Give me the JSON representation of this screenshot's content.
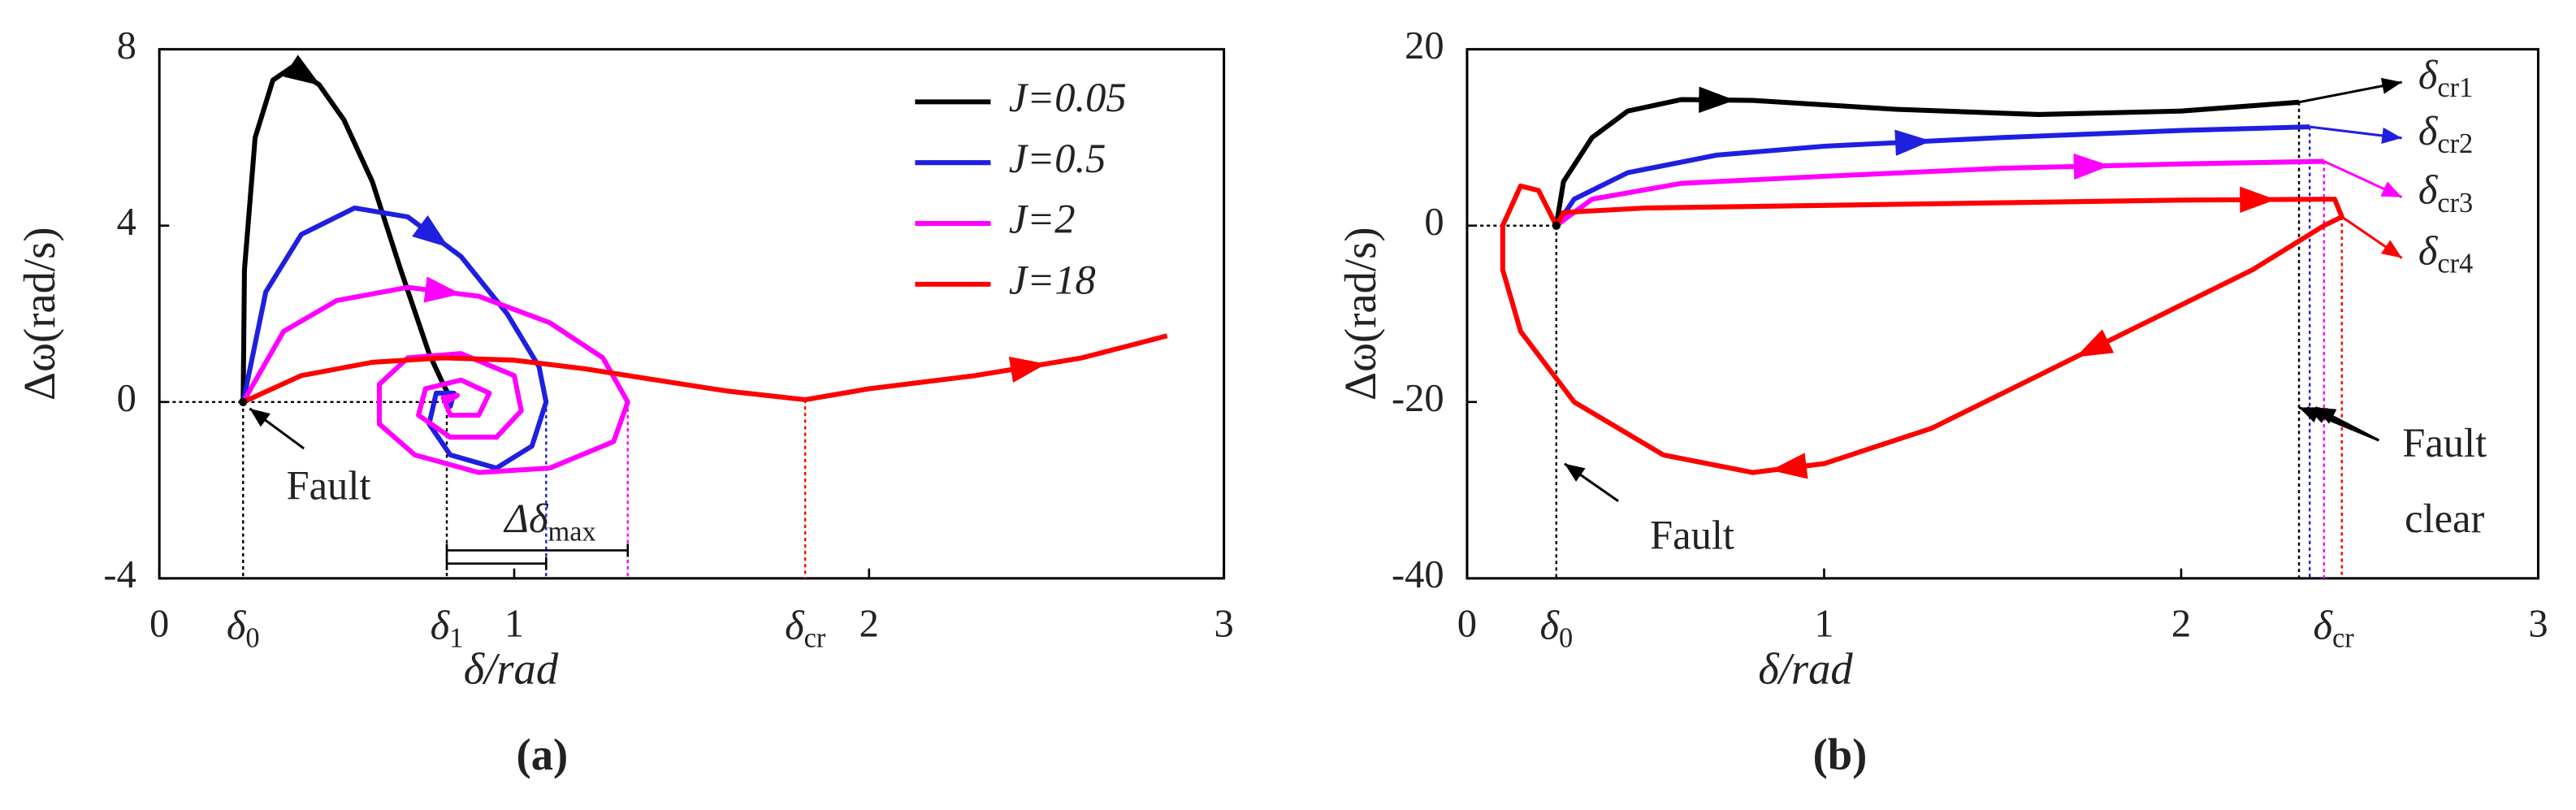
{
  "chart_data": [
    {
      "type": "line",
      "caption": "(a)",
      "x_label": "δ/rad",
      "y_label": "Δω(rad/s)",
      "xlim": [
        0,
        3
      ],
      "xticks": [
        0,
        1,
        2,
        3
      ],
      "ylim": [
        -4,
        8
      ],
      "yticks": [
        -4,
        0,
        4,
        8
      ],
      "legend": "upper right",
      "series": [
        {
          "name": "J=0.05",
          "color": "#000000",
          "x": [
            0.236,
            0.24,
            0.27,
            0.32,
            0.375,
            0.45,
            0.52,
            0.6,
            0.68,
            0.76,
            0.8,
            0.82,
            0.81
          ],
          "values": [
            0,
            3,
            6,
            7.3,
            7.6,
            7.2,
            6.4,
            5,
            3,
            1.1,
            0.4,
            0.1,
            0
          ]
        },
        {
          "name": "J=0.5",
          "color": "#1f1fe0",
          "x": [
            0.236,
            0.3,
            0.4,
            0.55,
            0.7,
            0.85,
            0.98,
            1.07,
            1.09,
            1.05,
            0.95,
            0.82,
            0.76,
            0.78,
            0.83,
            0.82,
            0.81
          ],
          "values": [
            0,
            2.5,
            3.8,
            4.4,
            4.2,
            3.3,
            2,
            0.8,
            0,
            -1,
            -1.5,
            -1.2,
            -0.5,
            0.2,
            0.2,
            -0.1,
            0
          ]
        },
        {
          "name": "J=2",
          "color": "#ff00ff",
          "x": [
            0.236,
            0.35,
            0.5,
            0.7,
            0.9,
            1.1,
            1.25,
            1.32,
            1.28,
            1.1,
            0.9,
            0.72,
            0.62,
            0.62,
            0.7,
            0.85,
            1.0,
            1.02,
            0.95,
            0.82,
            0.73,
            0.75,
            0.85,
            0.93,
            0.9,
            0.82,
            0.8,
            0.84,
            0.81
          ],
          "values": [
            0,
            1.6,
            2.3,
            2.6,
            2.4,
            1.8,
            1,
            0,
            -0.9,
            -1.5,
            -1.6,
            -1.2,
            -0.5,
            0.4,
            1,
            1.1,
            0.6,
            -0.2,
            -0.8,
            -0.8,
            -0.3,
            0.3,
            0.5,
            0.2,
            -0.3,
            -0.3,
            0.1,
            0.15,
            0
          ]
        },
        {
          "name": "J=18",
          "color": "#ff0000",
          "x": [
            0.236,
            0.4,
            0.6,
            0.8,
            1.0,
            1.2,
            1.4,
            1.6,
            1.82,
            2.0,
            2.3,
            2.6,
            2.84
          ],
          "values": [
            0,
            0.6,
            0.9,
            1.0,
            0.95,
            0.75,
            0.5,
            0.25,
            0.05,
            0.3,
            0.6,
            1.0,
            1.5
          ]
        }
      ],
      "annotations": [
        {
          "text": "Fault"
        },
        {
          "text": "δ",
          "sub": "0"
        },
        {
          "text": "δ",
          "sub": "1"
        },
        {
          "text": "δ",
          "sub": "cr"
        },
        {
          "text": "Δδ",
          "sub": "max"
        }
      ]
    },
    {
      "type": "line",
      "caption": "(b)",
      "x_label": "δ/rad",
      "y_label": "Δω(rad/s)",
      "xlim": [
        0,
        3
      ],
      "xticks": [
        0,
        1,
        2,
        3
      ],
      "ylim": [
        -40,
        20
      ],
      "yticks": [
        -40,
        -20,
        0,
        20
      ],
      "series": [
        {
          "color": "#000000",
          "x": [
            0.25,
            0.27,
            0.35,
            0.45,
            0.6,
            0.8,
            1.2,
            1.6,
            2.0,
            2.33
          ],
          "values": [
            0,
            5,
            10,
            13,
            14.3,
            14.2,
            13.2,
            12.6,
            13,
            14
          ]
        },
        {
          "color": "#1f1fe0",
          "x": [
            0.25,
            0.3,
            0.45,
            0.7,
            1.0,
            1.5,
            2.0,
            2.36
          ],
          "values": [
            0,
            3,
            6,
            8,
            9,
            10,
            10.8,
            11.2
          ]
        },
        {
          "color": "#ff00ff",
          "x": [
            0.25,
            0.35,
            0.6,
            1.0,
            1.5,
            2.0,
            2.4
          ],
          "values": [
            0,
            3,
            4.8,
            5.6,
            6.5,
            7,
            7.3
          ]
        },
        {
          "color": "#ff0000",
          "x": [
            0.25,
            0.27,
            0.5,
            1.0,
            1.5,
            2.0,
            2.43,
            2.45,
            2.4,
            2.2,
            1.9,
            1.6,
            1.3,
            1.0,
            0.8,
            0.55,
            0.3,
            0.15,
            0.1,
            0.1,
            0.15,
            0.2,
            0.25
          ],
          "values": [
            0,
            1.5,
            2,
            2.3,
            2.6,
            2.9,
            3,
            1,
            0,
            -5,
            -11,
            -17,
            -23,
            -27,
            -28,
            -26,
            -20,
            -12,
            -5,
            0,
            4.5,
            4,
            0
          ]
        }
      ],
      "annotations": [
        {
          "text": "Fault"
        },
        {
          "text": "δ",
          "sub": "0"
        },
        {
          "text": "δ",
          "sub": "cr"
        },
        {
          "text": "δ",
          "sub": "cr1"
        },
        {
          "text": "δ",
          "sub": "cr2"
        },
        {
          "text": "δ",
          "sub": "cr3"
        },
        {
          "text": "δ",
          "sub": "cr4"
        },
        {
          "text": "Fault"
        },
        {
          "text": "clear"
        }
      ]
    }
  ]
}
